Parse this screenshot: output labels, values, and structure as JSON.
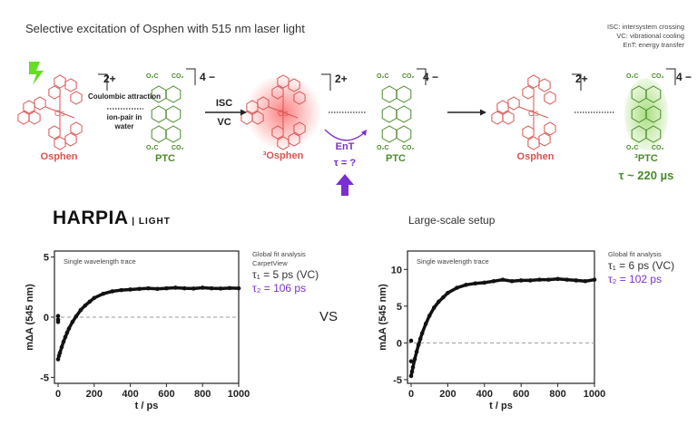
{
  "header": {
    "title": "Selective excitation of Osphen with 515 nm laser light",
    "legend": [
      "ISC: intersystem crossing",
      "VC: vibrational cooling",
      "EnT: energy transfer"
    ]
  },
  "scheme": {
    "osphen_label": "Osphen",
    "ptc_label": "PTC",
    "triplet_osphen_label": "³Osphen",
    "triplet_ptc_label": "³PTC",
    "charge_plus": "2+",
    "charge_minus": "4 −",
    "coulombic": "Coulombic attraction",
    "ion_pair": "ion-pair in water",
    "isc": "ISC",
    "vc": "VC",
    "ent": "EnT",
    "tau_unknown": "τ = ?",
    "tau_ptc": "τ ~ 220 µs",
    "os_atom": "Os",
    "n_atom": "N",
    "co2": "CO₂",
    "o2c": "O₂C",
    "colors": {
      "osphen": "#d9534f",
      "ptc": "#4a8a2a",
      "ent": "#7a2fd0",
      "laser": "#66dd22"
    }
  },
  "logo": {
    "brand": "HARPIA",
    "sub": "LIGHT"
  },
  "comparison": {
    "vs": "VS",
    "setup_title": "Large-scale setup"
  },
  "fits": [
    {
      "lines": [
        "Global fit analysis",
        "CarpetView"
      ],
      "tau1": "τ₁ = 5 ps (VC)",
      "tau2": "τ₂ = 106 ps"
    },
    {
      "lines": [
        "Global fit analysis"
      ],
      "tau1": "τ₁ = 6 ps (VC)",
      "tau2": "τ₂ = 102 ps"
    }
  ],
  "chart_data": [
    {
      "type": "scatter",
      "annotation": "Single wavelength trace",
      "xlabel": "t / ps",
      "ylabel": "mΔA (545 nm)",
      "xlim": [
        0,
        1000
      ],
      "ylim": [
        -5.5,
        5.5
      ],
      "xticks": [
        0,
        200,
        400,
        600,
        800,
        1000
      ],
      "yticks": [
        -5,
        0,
        5
      ],
      "zero_line": "dashed",
      "x": [
        0,
        0,
        0,
        0,
        5,
        10,
        20,
        30,
        40,
        50,
        60,
        80,
        100,
        125,
        150,
        175,
        200,
        250,
        300,
        350,
        400,
        450,
        500,
        550,
        600,
        650,
        700,
        750,
        800,
        850,
        900,
        950,
        1000
      ],
      "y": [
        0.1,
        -0.2,
        -0.4,
        -3.5,
        -3.2,
        -2.97,
        -2.49,
        -2.04,
        -1.65,
        -1.28,
        -0.95,
        -0.39,
        0.07,
        0.59,
        0.97,
        1.29,
        1.6,
        1.95,
        2.15,
        2.25,
        2.3,
        2.35,
        2.4,
        2.35,
        2.4,
        2.45,
        2.4,
        2.38,
        2.45,
        2.4,
        2.38,
        2.42,
        2.4
      ]
    },
    {
      "type": "scatter",
      "annotation": "Single wavelength trace",
      "xlabel": "t / ps",
      "ylabel": "mΔA (545 nm)",
      "xlim": [
        0,
        1000
      ],
      "ylim": [
        -5.5,
        12.5
      ],
      "xticks": [
        0,
        200,
        400,
        600,
        800,
        1000
      ],
      "yticks": [
        -5,
        0,
        5,
        10
      ],
      "zero_line": "dashed",
      "x": [
        0,
        0,
        0,
        5,
        10,
        20,
        30,
        40,
        50,
        60,
        80,
        100,
        125,
        150,
        175,
        200,
        250,
        300,
        350,
        400,
        450,
        500,
        550,
        600,
        650,
        700,
        750,
        800,
        850,
        900,
        950,
        1000
      ],
      "y": [
        0.3,
        -2.5,
        -4.5,
        -3.9,
        -3.3,
        -2.2,
        -1.2,
        -0.28,
        0.54,
        1.3,
        2.6,
        3.7,
        4.8,
        5.6,
        6.2,
        6.8,
        7.5,
        7.9,
        8.1,
        8.2,
        8.4,
        8.6,
        8.4,
        8.5,
        8.5,
        8.6,
        8.6,
        8.7,
        8.6,
        8.5,
        8.4,
        8.6
      ]
    }
  ]
}
